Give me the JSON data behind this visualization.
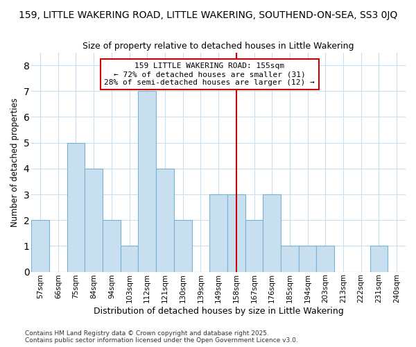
{
  "title_line1": "159, LITTLE WAKERING ROAD, LITTLE WAKERING, SOUTHEND-ON-SEA, SS3 0JQ",
  "title_line2": "Size of property relative to detached houses in Little Wakering",
  "xlabel": "Distribution of detached houses by size in Little Wakering",
  "ylabel": "Number of detached properties",
  "bar_labels": [
    "57sqm",
    "66sqm",
    "75sqm",
    "84sqm",
    "94sqm",
    "103sqm",
    "112sqm",
    "121sqm",
    "130sqm",
    "139sqm",
    "149sqm",
    "158sqm",
    "167sqm",
    "176sqm",
    "185sqm",
    "194sqm",
    "203sqm",
    "213sqm",
    "222sqm",
    "231sqm",
    "240sqm"
  ],
  "bar_values": [
    2,
    0,
    5,
    4,
    2,
    1,
    7,
    4,
    2,
    0,
    3,
    3,
    2,
    3,
    1,
    1,
    1,
    0,
    0,
    1,
    0
  ],
  "bar_color": "#c8dff0",
  "bar_edgecolor": "#7ab0d4",
  "vline_x_index": 11,
  "vline_color": "#cc0000",
  "annotation_text": "159 LITTLE WAKERING ROAD: 155sqm\n← 72% of detached houses are smaller (31)\n28% of semi-detached houses are larger (12) →",
  "ylim": [
    0,
    8.5
  ],
  "yticks": [
    0,
    1,
    2,
    3,
    4,
    5,
    6,
    7,
    8
  ],
  "plot_bg_color": "#ffffff",
  "fig_bg_color": "#ffffff",
  "grid_color": "#c8dff0",
  "footnote": "Contains HM Land Registry data © Crown copyright and database right 2025.\nContains public sector information licensed under the Open Government Licence v3.0."
}
